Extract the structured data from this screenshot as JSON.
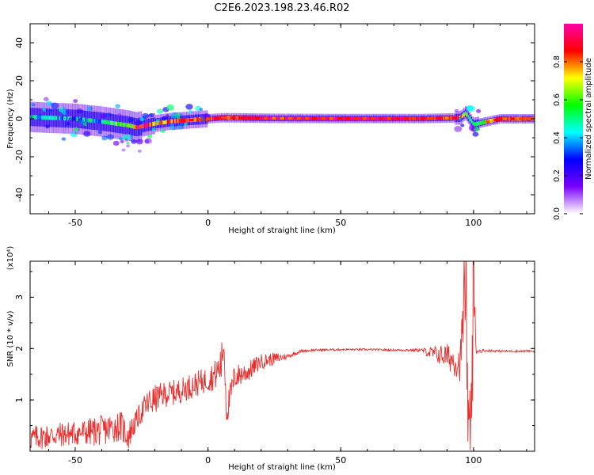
{
  "chart_data": [
    {
      "type": "heatmap",
      "title": "C2E6.2023.198.23.46.R02",
      "xlabel": "Height of straight line (km)",
      "ylabel": "Frequency (Hz)",
      "xlim": [
        -67,
        123
      ],
      "ylim": [
        -50,
        50
      ],
      "xticks": [
        -50,
        0,
        50,
        100
      ],
      "yticks": [
        40,
        20,
        0,
        -20,
        -40
      ],
      "grid": false,
      "colorbar": {
        "label": "Normalized spectral amplitude",
        "range": [
          0,
          1
        ],
        "ticks": [
          "0.0",
          "0.2",
          "0.4",
          "0.6",
          "0.8"
        ],
        "colormap": [
          "#ffffff",
          "#7a00ff",
          "#0000ff",
          "#00ffff",
          "#00ff00",
          "#ffff00",
          "#ff0000",
          "#ff00aa"
        ]
      },
      "ridge": {
        "description_points_height_km": [
          -67,
          -60,
          -50,
          -40,
          -35,
          -30,
          -27,
          -25,
          -20,
          -15,
          -10,
          -5,
          0,
          5,
          10,
          20,
          30,
          50,
          80,
          95,
          97,
          100,
          110,
          123
        ],
        "center_frequency_hz": [
          1,
          0.5,
          0,
          -1.5,
          -2.5,
          -3.5,
          -4.5,
          -4,
          -2.5,
          -1.5,
          -1,
          -0.5,
          0,
          0.5,
          0.5,
          0.3,
          0.2,
          0.1,
          0.1,
          0.5,
          3,
          -3,
          0,
          0
        ],
        "amplitude": [
          0.45,
          0.45,
          0.4,
          0.4,
          0.55,
          0.7,
          0.85,
          0.9,
          0.7,
          0.8,
          0.85,
          0.85,
          0.85,
          0.9,
          0.85,
          0.95,
          0.95,
          0.95,
          0.9,
          0.85,
          0.6,
          0.5,
          0.85,
          0.8
        ]
      }
    },
    {
      "type": "line",
      "xlabel": "Height of straight line (km)",
      "ylabel": "SNR (10 * v/v)",
      "y_multiplier": "(x10⁴)",
      "xlim": [
        -67,
        123
      ],
      "ylim": [
        0,
        3.7
      ],
      "xticks": [
        -50,
        0,
        50,
        100
      ],
      "yticks": [
        1,
        2,
        3
      ],
      "grid": false,
      "series": [
        {
          "color": "#e8312f",
          "x": [
            -67,
            -60,
            -50,
            -40,
            -33,
            -30,
            -27,
            -24,
            -22,
            -17,
            -12,
            -5,
            0,
            3,
            5,
            6,
            7,
            10,
            15,
            20,
            25,
            30,
            35,
            40,
            50,
            60,
            70,
            80,
            85,
            90,
            95,
            97,
            98,
            99,
            100,
            101,
            105,
            110,
            120,
            123
          ],
          "y": [
            0.25,
            0.3,
            0.35,
            0.4,
            0.5,
            0.3,
            0.6,
            0.85,
            0.95,
            1.1,
            1.15,
            1.3,
            1.4,
            1.5,
            1.7,
            2.1,
            0.75,
            1.45,
            1.55,
            1.75,
            1.8,
            1.85,
            1.95,
            1.97,
            1.98,
            1.98,
            1.97,
            1.97,
            1.9,
            1.85,
            1.7,
            3.5,
            0.6,
            0.25,
            3.2,
            1.95,
            1.96,
            1.95,
            1.95,
            1.95
          ],
          "noise": [
            0.25,
            0.25,
            0.25,
            0.3,
            0.3,
            0.3,
            0.2,
            0.25,
            0.3,
            0.25,
            0.25,
            0.25,
            0.25,
            0.3,
            0.4,
            0.3,
            0.3,
            0.25,
            0.2,
            0.15,
            0.12,
            0.05,
            0.03,
            0.02,
            0.02,
            0.02,
            0.02,
            0.03,
            0.15,
            0.25,
            0.35,
            0.7,
            0.6,
            0.6,
            0.9,
            0.05,
            0.02,
            0.02,
            0.02,
            0.02
          ]
        }
      ]
    }
  ]
}
